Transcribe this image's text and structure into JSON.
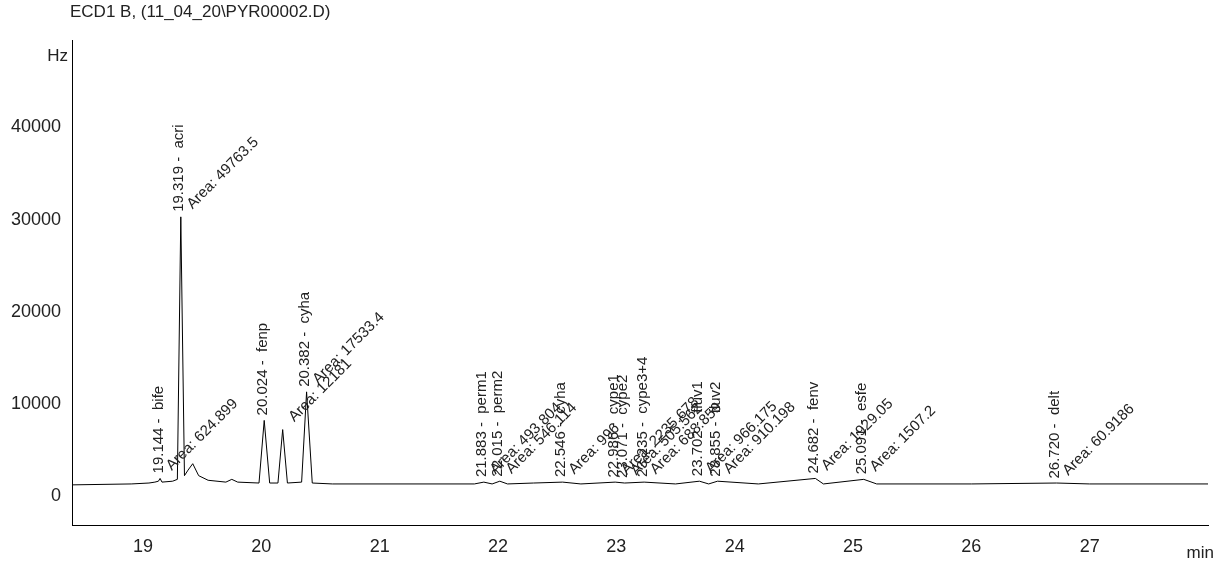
{
  "chart_data": {
    "type": "line",
    "title": "ECD1 B,  (11_04_20\\PYR00002.D)",
    "ylabel": "Hz",
    "xlabel": "min",
    "x": [
      18.4,
      18.9,
      19.05,
      19.1,
      19.13,
      19.144,
      19.16,
      19.25,
      19.29,
      19.319,
      19.35,
      19.38,
      19.42,
      19.47,
      19.55,
      19.7,
      19.75,
      19.8,
      19.98,
      20.024,
      20.07,
      20.14,
      20.18,
      20.22,
      20.34,
      20.382,
      20.43,
      20.6,
      21.8,
      21.88,
      21.95,
      22.015,
      22.08,
      22.3,
      22.546,
      22.7,
      22.99,
      23.07,
      23.235,
      23.5,
      23.702,
      23.78,
      23.855,
      24.2,
      24.682,
      24.75,
      25.091,
      25.2,
      26.0,
      26.72,
      27.0,
      28.0
    ],
    "series": [
      {
        "color": "#000000",
        "values": [
          1200,
          1300,
          1400,
          1500,
          1600,
          1900,
          1500,
          1600,
          1800,
          30300,
          2200,
          2800,
          3500,
          2200,
          1700,
          1500,
          1800,
          1500,
          1400,
          8200,
          1400,
          1400,
          7200,
          1400,
          1500,
          11300,
          1400,
          1300,
          1300,
          1500,
          1300,
          1600,
          1300,
          1400,
          1500,
          1300,
          1500,
          1400,
          1500,
          1300,
          1600,
          1300,
          1600,
          1300,
          1900,
          1300,
          1800,
          1300,
          1300,
          1400,
          1300,
          1300
        ]
      }
    ],
    "xlim": [
      18.4,
      28.0
    ],
    "ylim": [
      -3200,
      49500
    ],
    "xticks": [
      19,
      20,
      21,
      22,
      23,
      24,
      25,
      26,
      27
    ],
    "yticks": [
      0,
      10000,
      20000,
      30000,
      40000
    ],
    "grid": false,
    "legend": false,
    "marker": "none",
    "line_style": "solid",
    "annotations": [
      {
        "text": "19.144 -  bife",
        "x": 19.144,
        "y": 1900
      },
      {
        "text": "Area: 624.899",
        "x": 19.144,
        "y": 1900
      },
      {
        "text": "19.319 -  acri",
        "x": 19.319,
        "y": 30300
      },
      {
        "text": "Area: 49763.5",
        "x": 19.319,
        "y": 30300
      },
      {
        "text": "20.024 -  fenp",
        "x": 20.024,
        "y": 8200
      },
      {
        "text": "Area: 12181",
        "x": 20.18,
        "y": 7200
      },
      {
        "text": "20.382 -  cyha",
        "x": 20.382,
        "y": 11300
      },
      {
        "text": "Area: 17533.4",
        "x": 20.382,
        "y": 11300
      },
      {
        "text": "21.883 -  perm1",
        "x": 21.88,
        "y": 1500
      },
      {
        "text": "Area: 493.804",
        "x": 21.88,
        "y": 1500
      },
      {
        "text": "22.015 -  perm2",
        "x": 22.015,
        "y": 1550
      },
      {
        "text": "Area: 546.114",
        "x": 22.015,
        "y": 1550
      },
      {
        "text": "22.546 -  cyha",
        "x": 22.546,
        "y": 1500
      },
      {
        "text": "Area: 996",
        "x": 22.546,
        "y": 1500
      },
      {
        "text": "22.986 -  cype1",
        "x": 22.99,
        "y": 1450
      },
      {
        "text": "Area: 2235.678",
        "x": 22.99,
        "y": 1450
      },
      {
        "text": "23.071 -  cype2",
        "x": 23.07,
        "y": 1400
      },
      {
        "text": "Area: 505.562",
        "x": 23.07,
        "y": 1400
      },
      {
        "text": "23.235 -  cype3+4",
        "x": 23.235,
        "y": 1500
      },
      {
        "text": "Area: 688.859",
        "x": 23.235,
        "y": 1500
      },
      {
        "text": "23.702 -  fluv1",
        "x": 23.702,
        "y": 1600
      },
      {
        "text": "Area: 966.175",
        "x": 23.702,
        "y": 1600
      },
      {
        "text": "23.855 -  fluv2",
        "x": 23.855,
        "y": 1550
      },
      {
        "text": "Area: 910.198",
        "x": 23.855,
        "y": 1550
      },
      {
        "text": "24.682 -  fenv",
        "x": 24.682,
        "y": 1900
      },
      {
        "text": "Area: 1929.05",
        "x": 24.682,
        "y": 1900
      },
      {
        "text": "25.091 -  esfe",
        "x": 25.091,
        "y": 1800
      },
      {
        "text": "Area: 1507.2",
        "x": 25.091,
        "y": 1800
      },
      {
        "text": "26.720 -  delt",
        "x": 26.72,
        "y": 1350
      },
      {
        "text": "Area: 60.9186",
        "x": 26.72,
        "y": 1350
      }
    ]
  }
}
